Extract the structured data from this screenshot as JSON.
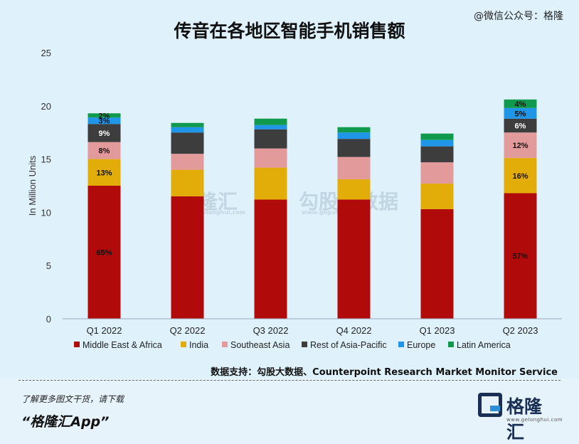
{
  "header": {
    "title": "传音在各地区智能手机销售额",
    "watermark": "@微信公众号：格隆"
  },
  "chart_data": {
    "type": "bar",
    "stacked": true,
    "ylabel": "In Million Units",
    "ylim": [
      0,
      25
    ],
    "yticks": [
      0,
      5,
      10,
      15,
      20,
      25
    ],
    "grid": false,
    "legend_position": "bottom",
    "categories": [
      "Q1 2022",
      "Q2 2022",
      "Q3 2022",
      "Q4 2022",
      "Q1 2023",
      "Q2 2023"
    ],
    "series": [
      {
        "name": "Middle East & Africa",
        "color": "#b10a0a",
        "values": [
          12.5,
          11.5,
          11.2,
          11.2,
          10.3,
          11.8
        ]
      },
      {
        "name": "India",
        "color": "#e2ad09",
        "values": [
          2.5,
          2.5,
          3.0,
          1.9,
          2.4,
          3.3
        ]
      },
      {
        "name": "Southeast Asia",
        "color": "#e39a9a",
        "values": [
          1.6,
          1.5,
          1.8,
          2.1,
          2.0,
          2.4
        ]
      },
      {
        "name": "Rest of Asia-Pacific",
        "color": "#3d3d3d",
        "values": [
          1.7,
          2.0,
          1.8,
          1.7,
          1.5,
          1.3
        ]
      },
      {
        "name": "Europe",
        "color": "#1f96e8",
        "values": [
          0.6,
          0.5,
          0.4,
          0.6,
          0.6,
          1.0
        ]
      },
      {
        "name": "Latin America",
        "color": "#0f9a4e",
        "values": [
          0.4,
          0.4,
          0.6,
          0.5,
          0.6,
          0.8
        ]
      }
    ],
    "data_labels": [
      {
        "category": "Q1 2022",
        "series": "Middle East & Africa",
        "text": "65%"
      },
      {
        "category": "Q1 2022",
        "series": "India",
        "text": "13%"
      },
      {
        "category": "Q1 2022",
        "series": "Southeast Asia",
        "text": "8%"
      },
      {
        "category": "Q1 2022",
        "series": "Rest of Asia-Pacific",
        "text": "9%"
      },
      {
        "category": "Q1 2022",
        "series": "Europe",
        "text": "3%"
      },
      {
        "category": "Q1 2022",
        "series": "Latin America",
        "text": "2%"
      },
      {
        "category": "Q2 2023",
        "series": "Middle East & Africa",
        "text": "57%"
      },
      {
        "category": "Q2 2023",
        "series": "India",
        "text": "16%"
      },
      {
        "category": "Q2 2023",
        "series": "Southeast Asia",
        "text": "12%"
      },
      {
        "category": "Q2 2023",
        "series": "Rest of Asia-Pacific",
        "text": "6%"
      },
      {
        "category": "Q2 2023",
        "series": "Europe",
        "text": "5%"
      },
      {
        "category": "Q2 2023",
        "series": "Latin America",
        "text": "4%"
      }
    ]
  },
  "watermarks": {
    "left_brand": "格隆汇",
    "left_url": "www.gelonghui.com",
    "right_brand": "勾股大数据",
    "right_url": "www.gogudata.com"
  },
  "source": "数据支持：勾股大数据、Counterpoint Research Market Monitor Service",
  "footer": {
    "promo": "了解更多图文干货，请下载",
    "app_name": "“格隆汇App”",
    "logo_name": "格隆汇",
    "logo_url": "www.gelonghui.com"
  }
}
